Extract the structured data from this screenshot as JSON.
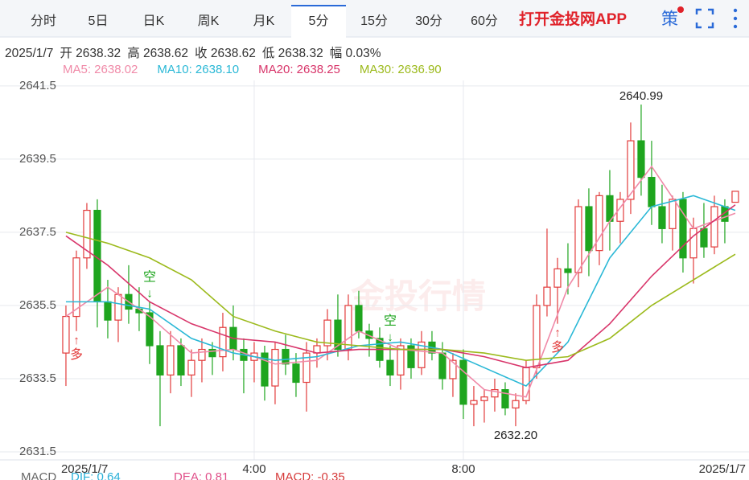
{
  "tabs": {
    "items": [
      "分时",
      "5日",
      "日K",
      "周K",
      "月K",
      "5分",
      "15分",
      "30分",
      "60分"
    ],
    "active": 5,
    "app": "打开金投网APP",
    "strategy": "策"
  },
  "header": {
    "info": [
      "2025/1/7",
      "开 2638.32",
      "高 2638.62",
      "收 2638.62",
      "低 2638.32",
      "幅 0.03%"
    ]
  },
  "footer": {
    "macd": [
      {
        "text": "MACD",
        "color": "#666"
      },
      {
        "text": "DIF: 0.64",
        "color": "#2ab0d8"
      },
      {
        "text": "DEA: 0.81",
        "color": "#e0508a"
      },
      {
        "text": "MACD: -0.35",
        "color": "#d63a3a"
      }
    ]
  },
  "chart_data": {
    "type": "candlestick",
    "watermark": "金投行情",
    "up_color": "#e23b3b",
    "down_color": "#1fa51f",
    "ylim": [
      2631.28,
      2641.65
    ],
    "yticks": [
      2641.5,
      2639.5,
      2637.5,
      2635.5,
      2633.5,
      2631.5
    ],
    "xlim": [
      -0.92,
      64.85
    ],
    "xticks": [
      {
        "value": 0,
        "label": "2025/1/7"
      },
      {
        "value": 18,
        "label": "4:00"
      },
      {
        "value": 38,
        "label": "8:00"
      },
      {
        "value": 64,
        "label": "2025/1/7"
      }
    ],
    "grid": true,
    "candles": [
      [
        2634.2,
        2635.5,
        2633.3,
        2635.2
      ],
      [
        2635.2,
        2637.0,
        2634.8,
        2636.8
      ],
      [
        2636.8,
        2638.3,
        2636.5,
        2638.1
      ],
      [
        2638.1,
        2638.4,
        2634.9,
        2635.6
      ],
      [
        2635.6,
        2636.2,
        2634.6,
        2635.1
      ],
      [
        2635.1,
        2636.0,
        2634.5,
        2635.8
      ],
      [
        2635.8,
        2636.6,
        2635.0,
        2635.4
      ],
      [
        2635.4,
        2636.0,
        2634.8,
        2635.3
      ],
      [
        2635.3,
        2635.6,
        2633.9,
        2634.4
      ],
      [
        2634.4,
        2634.8,
        2632.2,
        2633.6
      ],
      [
        2633.6,
        2634.8,
        2633.1,
        2634.4
      ],
      [
        2634.4,
        2634.6,
        2633.3,
        2633.6
      ],
      [
        2633.6,
        2634.3,
        2633.0,
        2634.0
      ],
      [
        2634.0,
        2634.6,
        2633.4,
        2634.3
      ],
      [
        2634.3,
        2634.5,
        2633.6,
        2634.1
      ],
      [
        2634.1,
        2635.3,
        2633.7,
        2634.9
      ],
      [
        2634.9,
        2635.5,
        2634.0,
        2634.3
      ],
      [
        2634.3,
        2634.6,
        2633.1,
        2634.0
      ],
      [
        2634.0,
        2634.5,
        2633.4,
        2634.2
      ],
      [
        2634.2,
        2634.4,
        2632.9,
        2633.3
      ],
      [
        2633.3,
        2634.5,
        2632.8,
        2634.3
      ],
      [
        2634.3,
        2634.7,
        2633.6,
        2633.9
      ],
      [
        2633.9,
        2634.2,
        2633.0,
        2633.4
      ],
      [
        2633.4,
        2634.5,
        2632.6,
        2634.2
      ],
      [
        2634.2,
        2634.6,
        2633.8,
        2634.4
      ],
      [
        2634.4,
        2635.4,
        2634.0,
        2635.1
      ],
      [
        2635.1,
        2635.8,
        2634.1,
        2634.3
      ],
      [
        2634.3,
        2635.8,
        2634.0,
        2635.5
      ],
      [
        2635.5,
        2635.9,
        2634.6,
        2634.8
      ],
      [
        2634.8,
        2635.0,
        2634.1,
        2634.6
      ],
      [
        2634.6,
        2634.9,
        2633.8,
        2634.0
      ],
      [
        2634.0,
        2634.4,
        2633.3,
        2633.6
      ],
      [
        2633.6,
        2634.6,
        2633.2,
        2634.4
      ],
      [
        2634.4,
        2634.6,
        2633.5,
        2633.8
      ],
      [
        2633.8,
        2634.8,
        2633.6,
        2634.5
      ],
      [
        2634.5,
        2634.8,
        2634.0,
        2634.2
      ],
      [
        2634.2,
        2634.5,
        2633.2,
        2633.5
      ],
      [
        2633.5,
        2634.2,
        2633.0,
        2634.0
      ],
      [
        2634.0,
        2634.3,
        2632.4,
        2632.8
      ],
      [
        2632.8,
        2633.3,
        2632.2,
        2632.9
      ],
      [
        2632.9,
        2633.2,
        2632.3,
        2633.0
      ],
      [
        2633.0,
        2633.5,
        2632.6,
        2633.2
      ],
      [
        2633.2,
        2633.4,
        2632.5,
        2632.7
      ],
      [
        2632.7,
        2633.1,
        2632.2,
        2632.9
      ],
      [
        2632.9,
        2634.0,
        2632.8,
        2633.8
      ],
      [
        2633.8,
        2635.8,
        2633.5,
        2635.5
      ],
      [
        2635.5,
        2637.6,
        2635.2,
        2636.0
      ],
      [
        2636.0,
        2636.8,
        2635.0,
        2636.5
      ],
      [
        2636.5,
        2637.2,
        2635.8,
        2636.4
      ],
      [
        2636.4,
        2638.4,
        2636.0,
        2638.2
      ],
      [
        2638.2,
        2638.7,
        2636.3,
        2637.0
      ],
      [
        2637.0,
        2638.6,
        2636.6,
        2638.5
      ],
      [
        2638.5,
        2639.2,
        2637.0,
        2637.8
      ],
      [
        2637.8,
        2638.6,
        2637.2,
        2638.4
      ],
      [
        2638.4,
        2640.5,
        2638.0,
        2640.0
      ],
      [
        2640.0,
        2640.99,
        2638.5,
        2639.0
      ],
      [
        2639.0,
        2640.0,
        2637.7,
        2638.2
      ],
      [
        2638.2,
        2638.8,
        2637.2,
        2637.6
      ],
      [
        2637.6,
        2638.5,
        2637.0,
        2638.4
      ],
      [
        2638.4,
        2638.6,
        2636.4,
        2636.8
      ],
      [
        2636.8,
        2637.9,
        2636.1,
        2637.6
      ],
      [
        2637.6,
        2638.3,
        2636.8,
        2637.1
      ],
      [
        2637.1,
        2638.5,
        2636.9,
        2638.2
      ],
      [
        2638.2,
        2638.4,
        2637.2,
        2637.8
      ],
      [
        2638.32,
        2638.62,
        2638.32,
        2638.62
      ]
    ],
    "series": [
      {
        "name": "MA5: 2638.02",
        "color": "#f08aa8",
        "x": [
          0,
          4,
          8,
          12,
          16,
          20,
          24,
          28,
          32,
          36,
          40,
          44,
          48,
          52,
          56,
          60,
          64
        ],
        "values": [
          2635.2,
          2636.0,
          2635.2,
          2634.2,
          2634.3,
          2633.9,
          2634.0,
          2634.8,
          2634.3,
          2634.2,
          2633.2,
          2633.0,
          2636.0,
          2637.8,
          2639.3,
          2637.6,
          2638.02
        ]
      },
      {
        "name": "MA10: 2638.10",
        "color": "#2ab8d6",
        "x": [
          0,
          4,
          8,
          12,
          16,
          20,
          24,
          28,
          32,
          36,
          40,
          44,
          48,
          52,
          56,
          60,
          64
        ],
        "values": [
          2635.6,
          2635.6,
          2635.4,
          2634.6,
          2634.2,
          2634.0,
          2634.1,
          2634.4,
          2634.5,
          2634.3,
          2633.8,
          2633.3,
          2634.5,
          2636.8,
          2638.2,
          2638.5,
          2638.1
        ]
      },
      {
        "name": "MA20: 2638.25",
        "color": "#d8356a",
        "x": [
          0,
          4,
          8,
          12,
          16,
          20,
          24,
          28,
          32,
          36,
          40,
          44,
          48,
          52,
          56,
          60,
          64
        ],
        "values": [
          2637.4,
          2636.6,
          2635.6,
          2635.0,
          2634.6,
          2634.5,
          2634.2,
          2634.3,
          2634.3,
          2634.3,
          2634.1,
          2633.8,
          2634.0,
          2635.0,
          2636.3,
          2637.4,
          2638.25
        ]
      },
      {
        "name": "MA30: 2636.90",
        "color": "#9cba1c",
        "x": [
          0,
          4,
          8,
          12,
          16,
          20,
          24,
          28,
          32,
          36,
          40,
          44,
          48,
          52,
          56,
          60,
          64
        ],
        "values": [
          2637.5,
          2637.2,
          2636.8,
          2636.2,
          2635.2,
          2634.8,
          2634.5,
          2634.4,
          2634.3,
          2634.3,
          2634.2,
          2634.0,
          2634.1,
          2634.6,
          2635.5,
          2636.2,
          2636.9
        ]
      }
    ],
    "annotations": [
      {
        "text": "2640.99",
        "x": 55,
        "y": 2640.99
      },
      {
        "text": "2632.20",
        "x": 43,
        "y": 2632.2
      }
    ],
    "signals": [
      {
        "text": "空",
        "arrow": "↓",
        "x": 8,
        "side": "short"
      },
      {
        "text": "空",
        "arrow": "↓",
        "x": 31,
        "side": "short"
      },
      {
        "text": "多",
        "arrow": "↑",
        "x": 1,
        "side": "long"
      },
      {
        "text": "多",
        "arrow": "↑",
        "x": 47,
        "side": "long"
      }
    ]
  }
}
